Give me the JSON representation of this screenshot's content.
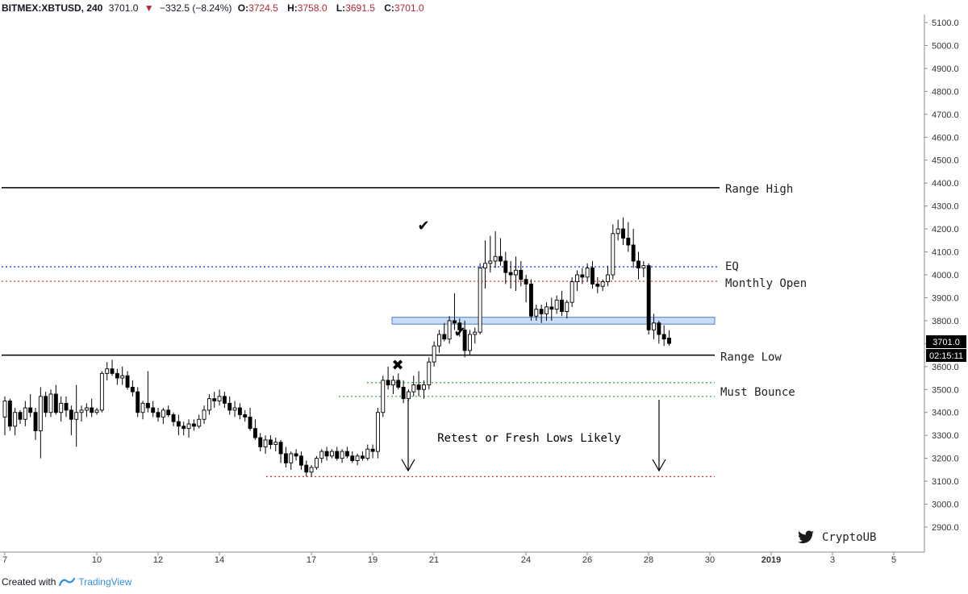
{
  "header": {
    "symbol": "BITMEX:XBTUSD, 240",
    "price": "3701.0",
    "change_arrow": "▼",
    "change": "−332.5 (−8.24%)",
    "o_label": "O:",
    "o_value": "3724.5",
    "h_label": "H:",
    "h_value": "3758.0",
    "l_label": "L:",
    "l_value": "3691.5",
    "c_label": "C:",
    "c_value": "3701.0"
  },
  "footer": {
    "created_with": "Created with",
    "brand": "TradingView"
  },
  "colors": {
    "candle_up_fill": "#ffffff",
    "candle_down_fill": "#000000",
    "candle_border": "#000000",
    "range_line": "#000000",
    "eq_line": "#1e40ff",
    "monthly_open_line": "#e03030",
    "must_bounce_line": "#2e9e3e",
    "target_line": "#e03030",
    "zone_fill": "#c8dcf6",
    "zone_border": "#4a7fd0"
  },
  "chart_data": {
    "type": "candlestick",
    "title": "",
    "ylim": [
      2800,
      5100
    ],
    "y_ticks": [
      "5100.0",
      "5000.0",
      "4900.0",
      "4800.0",
      "4700.0",
      "4600.0",
      "4500.0",
      "4400.0",
      "4300.0",
      "4200.0",
      "4100.0",
      "4000.0",
      "3900.0",
      "3800.0",
      "3700.0",
      "3600.0",
      "3500.0",
      "3400.0",
      "3300.0",
      "3200.0",
      "3100.0",
      "3000.0",
      "2900.0"
    ],
    "y_tick_values": [
      5100,
      5000,
      4900,
      4800,
      4700,
      4600,
      4500,
      4400,
      4300,
      4200,
      4100,
      4000,
      3900,
      3800,
      3700,
      3600,
      3500,
      3400,
      3300,
      3200,
      3100,
      3000,
      2900
    ],
    "x_ticks": [
      {
        "label": "7",
        "day": 7
      },
      {
        "label": "10",
        "day": 10
      },
      {
        "label": "12",
        "day": 12
      },
      {
        "label": "14",
        "day": 14
      },
      {
        "label": "17",
        "day": 17
      },
      {
        "label": "19",
        "day": 19
      },
      {
        "label": "21",
        "day": 21
      },
      {
        "label": "24",
        "day": 24
      },
      {
        "label": "26",
        "day": 26
      },
      {
        "label": "28",
        "day": 28
      },
      {
        "label": "30",
        "day": 30
      },
      {
        "label": "2019",
        "day": 32,
        "bold": true
      },
      {
        "label": "3",
        "day": 34
      },
      {
        "label": "5",
        "day": 36
      }
    ],
    "xlim_days": [
      6.9,
      38.0
    ],
    "candles_start_day": 7.0,
    "candle_step_days": 0.1667,
    "candles": [
      [
        3380,
        3470,
        3300,
        3450
      ],
      [
        3450,
        3460,
        3320,
        3340
      ],
      [
        3340,
        3420,
        3300,
        3400
      ],
      [
        3400,
        3410,
        3350,
        3370
      ],
      [
        3370,
        3450,
        3340,
        3420
      ],
      [
        3420,
        3480,
        3380,
        3400
      ],
      [
        3400,
        3420,
        3280,
        3320
      ],
      [
        3320,
        3510,
        3200,
        3470
      ],
      [
        3470,
        3490,
        3380,
        3400
      ],
      [
        3400,
        3500,
        3380,
        3480
      ],
      [
        3480,
        3520,
        3390,
        3400
      ],
      [
        3400,
        3470,
        3360,
        3440
      ],
      [
        3440,
        3470,
        3380,
        3410
      ],
      [
        3410,
        3430,
        3300,
        3370
      ],
      [
        3370,
        3520,
        3250,
        3400
      ],
      [
        3400,
        3430,
        3360,
        3410
      ],
      [
        3410,
        3440,
        3380,
        3420
      ],
      [
        3420,
        3460,
        3380,
        3400
      ],
      [
        3400,
        3420,
        3390,
        3410
      ],
      [
        3410,
        3580,
        3400,
        3570
      ],
      [
        3570,
        3620,
        3540,
        3590
      ],
      [
        3590,
        3630,
        3560,
        3570
      ],
      [
        3570,
        3590,
        3520,
        3550
      ],
      [
        3550,
        3600,
        3520,
        3560
      ],
      [
        3560,
        3580,
        3500,
        3510
      ],
      [
        3510,
        3540,
        3470,
        3490
      ],
      [
        3490,
        3510,
        3380,
        3400
      ],
      [
        3400,
        3450,
        3370,
        3440
      ],
      [
        3440,
        3580,
        3400,
        3420
      ],
      [
        3420,
        3450,
        3380,
        3400
      ],
      [
        3400,
        3420,
        3360,
        3380
      ],
      [
        3380,
        3420,
        3350,
        3410
      ],
      [
        3410,
        3430,
        3380,
        3390
      ],
      [
        3390,
        3400,
        3340,
        3360
      ],
      [
        3360,
        3390,
        3300,
        3340
      ],
      [
        3340,
        3360,
        3300,
        3330
      ],
      [
        3330,
        3370,
        3290,
        3350
      ],
      [
        3350,
        3370,
        3320,
        3340
      ],
      [
        3340,
        3390,
        3330,
        3370
      ],
      [
        3370,
        3430,
        3350,
        3410
      ],
      [
        3410,
        3480,
        3390,
        3460
      ],
      [
        3460,
        3490,
        3420,
        3450
      ],
      [
        3450,
        3500,
        3430,
        3470
      ],
      [
        3470,
        3490,
        3420,
        3440
      ],
      [
        3440,
        3470,
        3390,
        3410
      ],
      [
        3410,
        3450,
        3380,
        3420
      ],
      [
        3420,
        3440,
        3370,
        3390
      ],
      [
        3390,
        3410,
        3360,
        3380
      ],
      [
        3380,
        3420,
        3320,
        3330
      ],
      [
        3330,
        3370,
        3280,
        3290
      ],
      [
        3290,
        3310,
        3230,
        3250
      ],
      [
        3250,
        3300,
        3220,
        3280
      ],
      [
        3280,
        3300,
        3240,
        3260
      ],
      [
        3260,
        3290,
        3230,
        3270
      ],
      [
        3270,
        3280,
        3180,
        3220
      ],
      [
        3220,
        3250,
        3160,
        3180
      ],
      [
        3180,
        3230,
        3150,
        3220
      ],
      [
        3220,
        3240,
        3190,
        3210
      ],
      [
        3210,
        3230,
        3150,
        3170
      ],
      [
        3170,
        3190,
        3120,
        3140
      ],
      [
        3140,
        3170,
        3120,
        3160
      ],
      [
        3160,
        3210,
        3150,
        3200
      ],
      [
        3200,
        3240,
        3180,
        3230
      ],
      [
        3230,
        3250,
        3190,
        3210
      ],
      [
        3210,
        3240,
        3200,
        3230
      ],
      [
        3230,
        3250,
        3190,
        3200
      ],
      [
        3200,
        3240,
        3180,
        3230
      ],
      [
        3230,
        3250,
        3200,
        3210
      ],
      [
        3210,
        3230,
        3180,
        3190
      ],
      [
        3190,
        3220,
        3170,
        3210
      ],
      [
        3210,
        3230,
        3190,
        3200
      ],
      [
        3200,
        3260,
        3190,
        3240
      ],
      [
        3240,
        3260,
        3200,
        3230
      ],
      [
        3230,
        3420,
        3200,
        3400
      ],
      [
        3400,
        3560,
        3380,
        3540
      ],
      [
        3540,
        3600,
        3500,
        3520
      ],
      [
        3520,
        3560,
        3480,
        3540
      ],
      [
        3540,
        3570,
        3500,
        3510
      ],
      [
        3510,
        3540,
        3440,
        3460
      ],
      [
        3460,
        3500,
        3450,
        3490
      ],
      [
        3490,
        3560,
        3470,
        3520
      ],
      [
        3520,
        3580,
        3470,
        3500
      ],
      [
        3500,
        3540,
        3460,
        3520
      ],
      [
        3520,
        3640,
        3500,
        3620
      ],
      [
        3620,
        3710,
        3600,
        3690
      ],
      [
        3690,
        3760,
        3660,
        3740
      ],
      [
        3740,
        3790,
        3710,
        3720
      ],
      [
        3720,
        3820,
        3700,
        3800
      ],
      [
        3800,
        3920,
        3760,
        3790
      ],
      [
        3790,
        3810,
        3730,
        3760
      ],
      [
        3760,
        3800,
        3640,
        3670
      ],
      [
        3670,
        3760,
        3650,
        3740
      ],
      [
        3740,
        3770,
        3700,
        3750
      ],
      [
        3750,
        4050,
        3740,
        4030
      ],
      [
        4030,
        4150,
        3940,
        4050
      ],
      [
        4050,
        4170,
        4010,
        4060
      ],
      [
        4060,
        4190,
        4030,
        4080
      ],
      [
        4080,
        4160,
        4040,
        4060
      ],
      [
        4060,
        4100,
        3960,
        4010
      ],
      [
        4010,
        4060,
        3940,
        4000
      ],
      [
        4000,
        4080,
        3930,
        4020
      ],
      [
        4020,
        4060,
        3950,
        3980
      ],
      [
        3980,
        4000,
        3880,
        3960
      ],
      [
        3960,
        3980,
        3800,
        3820
      ],
      [
        3820,
        3870,
        3800,
        3850
      ],
      [
        3850,
        3870,
        3790,
        3830
      ],
      [
        3830,
        3880,
        3800,
        3860
      ],
      [
        3860,
        3900,
        3800,
        3850
      ],
      [
        3850,
        3910,
        3830,
        3890
      ],
      [
        3890,
        3930,
        3820,
        3840
      ],
      [
        3840,
        3890,
        3810,
        3880
      ],
      [
        3880,
        3990,
        3860,
        3970
      ],
      [
        3970,
        4020,
        3930,
        4000
      ],
      [
        4000,
        4030,
        3960,
        3990
      ],
      [
        3990,
        4050,
        3970,
        4030
      ],
      [
        4030,
        4060,
        3940,
        3960
      ],
      [
        3960,
        3990,
        3920,
        3950
      ],
      [
        3950,
        3980,
        3930,
        3970
      ],
      [
        3970,
        4040,
        3950,
        4000
      ],
      [
        4000,
        4220,
        3980,
        4180
      ],
      [
        4180,
        4240,
        4150,
        4200
      ],
      [
        4200,
        4250,
        4130,
        4160
      ],
      [
        4160,
        4230,
        4100,
        4130
      ],
      [
        4130,
        4200,
        4030,
        4060
      ],
      [
        4060,
        4100,
        3980,
        4030
      ],
      [
        4030,
        4060,
        3990,
        4040
      ],
      [
        4040,
        4050,
        3740,
        3760
      ],
      [
        3760,
        3830,
        3720,
        3790
      ],
      [
        3790,
        3800,
        3700,
        3740
      ],
      [
        3740,
        3780,
        3690,
        3720
      ],
      [
        3724.5,
        3758,
        3691.5,
        3701
      ]
    ],
    "annotations": [
      {
        "name": "range-high",
        "label": "Range High",
        "value": 4380
      },
      {
        "name": "eq",
        "label": "EQ",
        "value": 4035
      },
      {
        "name": "monthly-open",
        "label": "Monthly Open",
        "value": 3972
      },
      {
        "name": "range-low",
        "label": "Range Low",
        "value": 3650
      },
      {
        "name": "must-bounce",
        "label": "Must Bounce",
        "value": 3470
      },
      {
        "name": "bounce-upper",
        "value": 3530
      },
      {
        "name": "target-low",
        "value": 3120
      },
      {
        "name": "support-zone",
        "from": 3785,
        "to": 3815
      }
    ],
    "center_text": "Retest or Fresh Lows Likely",
    "watermark": "CryptoUB",
    "last_price_label": "3701.0",
    "countdown_label": "02:15:11"
  }
}
